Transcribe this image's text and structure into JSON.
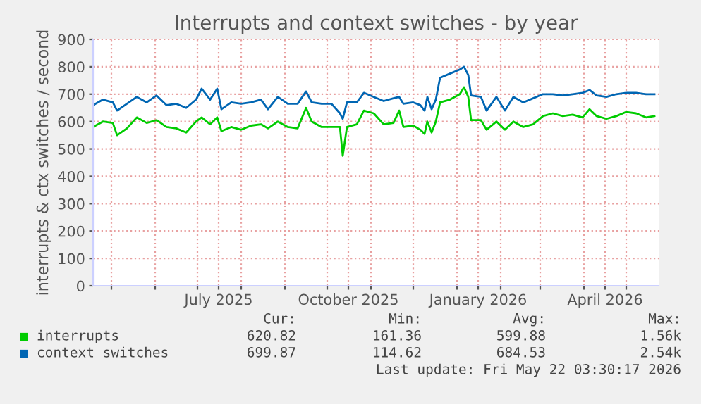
{
  "chart_data": {
    "type": "line",
    "title": "Interrupts and context switches - by year",
    "ylabel": "interrupts & ctx switches / second",
    "x": [
      "2025-04-18",
      "2025-04-25",
      "2025-05-02",
      "2025-05-05",
      "2025-05-12",
      "2025-05-19",
      "2025-05-26",
      "2025-06-02",
      "2025-06-09",
      "2025-06-16",
      "2025-06-23",
      "2025-06-30",
      "2025-07-04",
      "2025-07-10",
      "2025-07-15",
      "2025-07-18",
      "2025-07-25",
      "2025-08-01",
      "2025-08-08",
      "2025-08-15",
      "2025-08-20",
      "2025-08-27",
      "2025-09-03",
      "2025-09-10",
      "2025-09-16",
      "2025-09-20",
      "2025-09-27",
      "2025-10-04",
      "2025-10-10",
      "2025-10-12",
      "2025-10-15",
      "2025-10-22",
      "2025-10-27",
      "2025-11-03",
      "2025-11-10",
      "2025-11-17",
      "2025-11-21",
      "2025-11-24",
      "2025-12-01",
      "2025-12-06",
      "2025-12-09",
      "2025-12-11",
      "2025-12-14",
      "2025-12-17",
      "2025-12-20",
      "2025-12-27",
      "2026-01-03",
      "2026-01-06",
      "2026-01-09",
      "2026-01-11",
      "2026-01-18",
      "2026-01-22",
      "2026-01-29",
      "2026-02-04",
      "2026-02-10",
      "2026-02-17",
      "2026-02-24",
      "2026-03-03",
      "2026-03-10",
      "2026-03-17",
      "2026-03-24",
      "2026-03-31",
      "2026-04-05",
      "2026-04-10",
      "2026-04-17",
      "2026-04-24",
      "2026-05-01",
      "2026-05-08",
      "2026-05-15",
      "2026-05-21"
    ],
    "series": [
      {
        "name": "interrupts",
        "color": "#00cc00",
        "values": [
          580,
          600,
          595,
          550,
          575,
          615,
          595,
          605,
          580,
          575,
          560,
          600,
          615,
          590,
          615,
          565,
          580,
          570,
          585,
          590,
          575,
          600,
          580,
          575,
          650,
          600,
          580,
          580,
          580,
          475,
          580,
          590,
          640,
          630,
          590,
          595,
          640,
          580,
          585,
          570,
          555,
          600,
          560,
          600,
          670,
          680,
          700,
          725,
          690,
          605,
          605,
          570,
          600,
          570,
          600,
          580,
          590,
          620,
          630,
          620,
          625,
          615,
          645,
          620,
          610,
          620,
          635,
          630,
          615,
          620
        ]
      },
      {
        "name": "context switches",
        "color": "#0066b3",
        "values": [
          660,
          680,
          670,
          640,
          665,
          690,
          670,
          695,
          660,
          665,
          650,
          680,
          720,
          680,
          720,
          645,
          670,
          665,
          670,
          680,
          645,
          690,
          665,
          665,
          710,
          670,
          665,
          665,
          630,
          610,
          670,
          670,
          705,
          690,
          675,
          685,
          690,
          665,
          670,
          660,
          640,
          690,
          645,
          680,
          760,
          775,
          790,
          800,
          770,
          695,
          690,
          640,
          690,
          640,
          690,
          670,
          685,
          700,
          700,
          695,
          700,
          705,
          715,
          695,
          690,
          700,
          705,
          705,
          700,
          700
        ]
      }
    ],
    "xlim": [
      "2025-04-18",
      "2026-05-24"
    ],
    "xticks": [
      {
        "value": "2025-05-01",
        "label": null
      },
      {
        "value": "2025-06-01",
        "label": null
      },
      {
        "value": "2025-07-01",
        "label": null
      },
      {
        "value": "2025-07-16",
        "label": "July 2025"
      },
      {
        "value": "2025-08-01",
        "label": null
      },
      {
        "value": "2025-09-01",
        "label": null
      },
      {
        "value": "2025-10-01",
        "label": null
      },
      {
        "value": "2025-10-16",
        "label": "October 2025"
      },
      {
        "value": "2025-11-01",
        "label": null
      },
      {
        "value": "2025-12-01",
        "label": null
      },
      {
        "value": "2026-01-01",
        "label": null
      },
      {
        "value": "2026-01-16",
        "label": "January 2026"
      },
      {
        "value": "2026-02-01",
        "label": null
      },
      {
        "value": "2026-03-01",
        "label": null
      },
      {
        "value": "2026-04-01",
        "label": null
      },
      {
        "value": "2026-04-16",
        "label": "April 2026"
      },
      {
        "value": "2026-05-01",
        "label": null
      }
    ],
    "ylim": [
      0,
      900
    ],
    "yticks": [
      0,
      100,
      200,
      300,
      400,
      500,
      600,
      700,
      800,
      900
    ],
    "grid": true,
    "legend": "bottom",
    "marker": "none",
    "line_style": "solid",
    "annotations": [
      "Cur:",
      "Min:",
      "Avg:",
      "Max:",
      "620.82",
      "161.36",
      "599.88",
      "1.56k",
      "699.87",
      "114.62",
      "684.53",
      "2.54k",
      "Last update: Fri May 22 03:30:17 2026"
    ]
  }
}
